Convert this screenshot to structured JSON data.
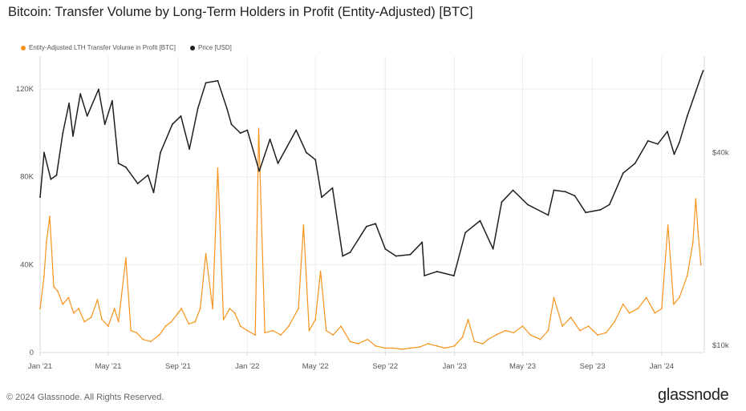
{
  "title": "Bitcoin: Transfer Volume by Long-Term Holders in Profit (Entity-Adjusted) [BTC]",
  "footer": {
    "copyright": "© 2024 Glassnode. All Rights Reserved.",
    "logo": "glassnode"
  },
  "colors": {
    "volume": "#f7931a",
    "price": "#1f1f1f",
    "grid": "#ececec",
    "axis": "#d9d9d9"
  },
  "chart_data": {
    "type": "line",
    "title": "Bitcoin: Transfer Volume by Long-Term Holders in Profit (Entity-Adjusted) [BTC]",
    "x_tick_labels": [
      "Jan '21",
      "May '21",
      "Sep '21",
      "Jan '22",
      "May '22",
      "Sep '22",
      "Jan '23",
      "May '23",
      "Sep '23",
      "Jan '24"
    ],
    "y_left": {
      "ticks": [
        0,
        40000,
        80000,
        120000
      ],
      "tick_labels": [
        "0",
        "40K",
        "80K",
        "120K"
      ],
      "range": [
        0,
        135000
      ]
    },
    "y_right": {
      "scale": "log",
      "ticks": [
        10000,
        40000
      ],
      "tick_labels": [
        "$10k",
        "$40k"
      ],
      "range": [
        9500,
        80000
      ]
    },
    "legend": {
      "placement": "top-left"
    },
    "grid": true,
    "series": [
      {
        "name": "Entity-Adjusted LTH Transfer Volume in Profit [BTC]",
        "axis": "left",
        "color": "#f7931a",
        "points": [
          [
            "2021-01-01",
            20000
          ],
          [
            "2021-01-08",
            35000
          ],
          [
            "2021-01-12",
            50000
          ],
          [
            "2021-01-18",
            62000
          ],
          [
            "2021-01-25",
            30000
          ],
          [
            "2021-02-01",
            28000
          ],
          [
            "2021-02-10",
            22000
          ],
          [
            "2021-02-20",
            25000
          ],
          [
            "2021-03-01",
            18000
          ],
          [
            "2021-03-10",
            20000
          ],
          [
            "2021-03-20",
            14000
          ],
          [
            "2021-04-01",
            16000
          ],
          [
            "2021-04-12",
            24000
          ],
          [
            "2021-04-20",
            15000
          ],
          [
            "2021-05-01",
            12000
          ],
          [
            "2021-05-12",
            20000
          ],
          [
            "2021-05-19",
            14000
          ],
          [
            "2021-06-01",
            43000
          ],
          [
            "2021-06-10",
            10000
          ],
          [
            "2021-06-20",
            9000
          ],
          [
            "2021-07-01",
            6000
          ],
          [
            "2021-07-15",
            5000
          ],
          [
            "2021-07-30",
            8000
          ],
          [
            "2021-08-10",
            12000
          ],
          [
            "2021-08-20",
            14000
          ],
          [
            "2021-09-01",
            18000
          ],
          [
            "2021-09-07",
            20000
          ],
          [
            "2021-09-20",
            13000
          ],
          [
            "2021-10-01",
            14000
          ],
          [
            "2021-10-10",
            20000
          ],
          [
            "2021-10-20",
            45000
          ],
          [
            "2021-11-01",
            20000
          ],
          [
            "2021-11-10",
            84000
          ],
          [
            "2021-11-20",
            15000
          ],
          [
            "2021-12-01",
            20000
          ],
          [
            "2021-12-10",
            18000
          ],
          [
            "2021-12-20",
            12000
          ],
          [
            "2022-01-01",
            10000
          ],
          [
            "2022-01-15",
            8000
          ],
          [
            "2022-01-21",
            102000
          ],
          [
            "2022-02-01",
            9000
          ],
          [
            "2022-02-15",
            10000
          ],
          [
            "2022-03-01",
            8000
          ],
          [
            "2022-03-15",
            12000
          ],
          [
            "2022-04-01",
            20000
          ],
          [
            "2022-04-10",
            58000
          ],
          [
            "2022-04-20",
            10000
          ],
          [
            "2022-05-01",
            15000
          ],
          [
            "2022-05-10",
            37000
          ],
          [
            "2022-05-20",
            10000
          ],
          [
            "2022-06-01",
            8000
          ],
          [
            "2022-06-15",
            12000
          ],
          [
            "2022-07-01",
            5000
          ],
          [
            "2022-07-15",
            4000
          ],
          [
            "2022-08-01",
            6000
          ],
          [
            "2022-08-15",
            3000
          ],
          [
            "2022-09-01",
            2000
          ],
          [
            "2022-09-15",
            2000
          ],
          [
            "2022-10-01",
            1500
          ],
          [
            "2022-10-15",
            2000
          ],
          [
            "2022-11-01",
            2500
          ],
          [
            "2022-11-15",
            4000
          ],
          [
            "2022-12-01",
            3000
          ],
          [
            "2022-12-15",
            2000
          ],
          [
            "2023-01-01",
            3000
          ],
          [
            "2023-01-15",
            7000
          ],
          [
            "2023-01-25",
            15000
          ],
          [
            "2023-02-05",
            5000
          ],
          [
            "2023-02-20",
            4000
          ],
          [
            "2023-03-01",
            6000
          ],
          [
            "2023-03-15",
            8000
          ],
          [
            "2023-04-01",
            10000
          ],
          [
            "2023-04-15",
            9000
          ],
          [
            "2023-05-01",
            12000
          ],
          [
            "2023-05-15",
            8000
          ],
          [
            "2023-06-01",
            6000
          ],
          [
            "2023-06-15",
            10000
          ],
          [
            "2023-06-25",
            25000
          ],
          [
            "2023-07-10",
            12000
          ],
          [
            "2023-07-25",
            16000
          ],
          [
            "2023-08-10",
            10000
          ],
          [
            "2023-08-25",
            12000
          ],
          [
            "2023-09-10",
            8000
          ],
          [
            "2023-09-25",
            9000
          ],
          [
            "2023-10-10",
            14000
          ],
          [
            "2023-10-25",
            22000
          ],
          [
            "2023-11-05",
            18000
          ],
          [
            "2023-11-20",
            20000
          ],
          [
            "2023-12-05",
            25000
          ],
          [
            "2023-12-20",
            18000
          ],
          [
            "2024-01-01",
            20000
          ],
          [
            "2024-01-12",
            58000
          ],
          [
            "2024-01-22",
            22000
          ],
          [
            "2024-02-01",
            25000
          ],
          [
            "2024-02-15",
            35000
          ],
          [
            "2024-02-25",
            50000
          ],
          [
            "2024-03-01",
            70000
          ],
          [
            "2024-03-05",
            55000
          ],
          [
            "2024-03-10",
            40000
          ]
        ]
      },
      {
        "name": "Price [USD]",
        "axis": "right",
        "color": "#1f1f1f",
        "points": [
          [
            "2021-01-01",
            29000
          ],
          [
            "2021-01-08",
            40000
          ],
          [
            "2021-01-20",
            33000
          ],
          [
            "2021-01-30",
            34000
          ],
          [
            "2021-02-10",
            46000
          ],
          [
            "2021-02-21",
            57000
          ],
          [
            "2021-02-28",
            45000
          ],
          [
            "2021-03-13",
            61000
          ],
          [
            "2021-03-25",
            52000
          ],
          [
            "2021-04-14",
            63000
          ],
          [
            "2021-04-25",
            49000
          ],
          [
            "2021-05-08",
            58000
          ],
          [
            "2021-05-19",
            37000
          ],
          [
            "2021-06-01",
            36000
          ],
          [
            "2021-06-22",
            32000
          ],
          [
            "2021-07-10",
            34000
          ],
          [
            "2021-07-20",
            30000
          ],
          [
            "2021-08-01",
            40000
          ],
          [
            "2021-08-22",
            49000
          ],
          [
            "2021-09-06",
            52000
          ],
          [
            "2021-09-21",
            41000
          ],
          [
            "2021-10-06",
            55000
          ],
          [
            "2021-10-20",
            66000
          ],
          [
            "2021-11-10",
            67000
          ],
          [
            "2021-11-26",
            55000
          ],
          [
            "2021-12-04",
            49000
          ],
          [
            "2021-12-20",
            46000
          ],
          [
            "2022-01-01",
            47000
          ],
          [
            "2022-01-22",
            35000
          ],
          [
            "2022-02-10",
            44000
          ],
          [
            "2022-02-24",
            37000
          ],
          [
            "2022-03-28",
            47000
          ],
          [
            "2022-04-15",
            40000
          ],
          [
            "2022-05-01",
            38000
          ],
          [
            "2022-05-12",
            29000
          ],
          [
            "2022-05-31",
            31000
          ],
          [
            "2022-06-18",
            19000
          ],
          [
            "2022-07-01",
            19500
          ],
          [
            "2022-07-30",
            23500
          ],
          [
            "2022-08-15",
            24000
          ],
          [
            "2022-09-01",
            20000
          ],
          [
            "2022-09-20",
            19000
          ],
          [
            "2022-10-15",
            19200
          ],
          [
            "2022-11-05",
            21000
          ],
          [
            "2022-11-09",
            16500
          ],
          [
            "2022-12-01",
            17000
          ],
          [
            "2022-12-31",
            16500
          ],
          [
            "2023-01-20",
            22500
          ],
          [
            "2023-02-15",
            24500
          ],
          [
            "2023-03-10",
            20000
          ],
          [
            "2023-03-25",
            28000
          ],
          [
            "2023-04-14",
            30500
          ],
          [
            "2023-05-10",
            27500
          ],
          [
            "2023-06-15",
            25500
          ],
          [
            "2023-06-25",
            30500
          ],
          [
            "2023-07-15",
            30200
          ],
          [
            "2023-08-01",
            29300
          ],
          [
            "2023-08-20",
            26000
          ],
          [
            "2023-09-15",
            26500
          ],
          [
            "2023-10-01",
            27500
          ],
          [
            "2023-10-25",
            34500
          ],
          [
            "2023-11-15",
            37000
          ],
          [
            "2023-12-08",
            43500
          ],
          [
            "2023-12-25",
            42500
          ],
          [
            "2024-01-11",
            46500
          ],
          [
            "2024-01-23",
            39500
          ],
          [
            "2024-02-01",
            43000
          ],
          [
            "2024-02-15",
            52000
          ],
          [
            "2024-03-01",
            62000
          ],
          [
            "2024-03-10",
            69000
          ],
          [
            "2024-03-14",
            72000
          ]
        ]
      }
    ]
  }
}
